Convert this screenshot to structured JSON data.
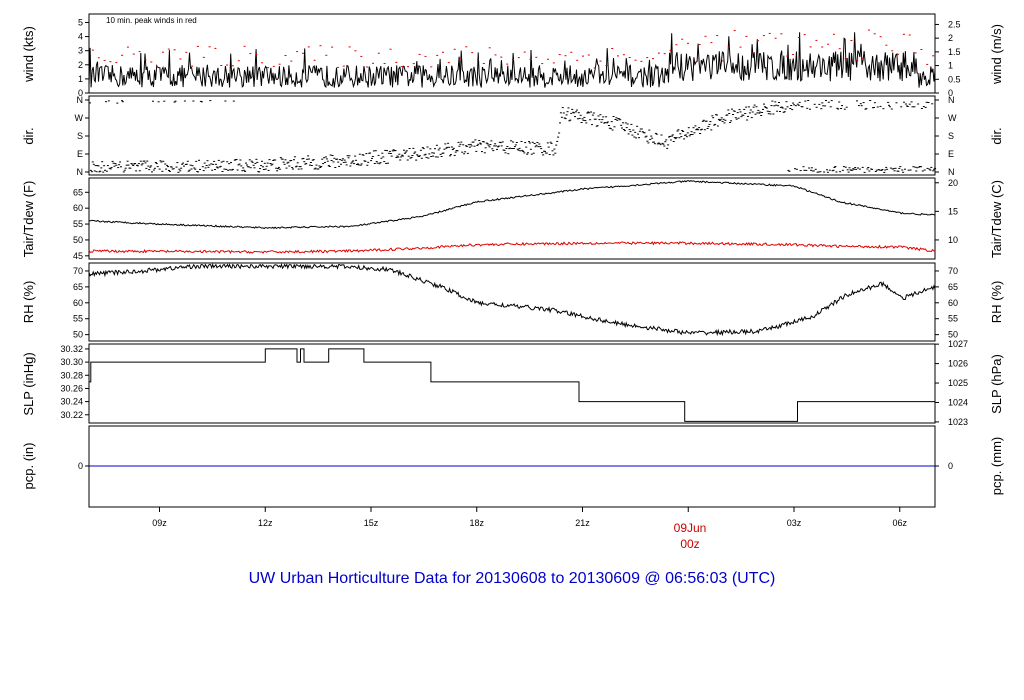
{
  "colors": {
    "wind": "#000000",
    "peak": "#e00000",
    "tair": "#000000",
    "tdew": "#e00000",
    "rh": "#000000",
    "slp": "#000000",
    "pcp": "#0000cc",
    "title": "#0000cc",
    "day_label": "#cc0000"
  },
  "title": "UW Urban Horticulture Data for 20130608  to  20130609 @ 06:56:03  (UTC)",
  "x_ticks": [
    "09z",
    "12z",
    "15z",
    "18z",
    "21z",
    "",
    "03z",
    "06z"
  ],
  "day_label": {
    "day": "09Jun",
    "hour": "00z"
  },
  "chart_data": [
    {
      "type": "line",
      "name": "wind",
      "ylabel_left": "wind (kts)",
      "ylabel_right": "wind (m/s)",
      "annotation": "10 min. peak winds in red",
      "ylim": [
        0,
        5.6
      ],
      "yticks_left": [
        "0",
        "1",
        "2",
        "3",
        "4",
        "5"
      ],
      "yticks_right": [
        "0",
        "0.5",
        "1",
        "1.5",
        "2",
        "2.5"
      ],
      "series": [
        {
          "values_description": "wind speed fluctuating mostly 0.5–2.5 kts, higher 1–4 kts between 00z and 06z"
        },
        {
          "values_description": "peak gusts mostly 2–4 kts, up to 5.5 kts near 00z–01z"
        }
      ]
    },
    {
      "type": "scatter",
      "name": "direction",
      "ylabel_left": "dir.",
      "ylabel_right": "dir.",
      "yticks_left": [
        "N",
        "E",
        "S",
        "W",
        "N"
      ],
      "yticks_right": [
        "N",
        "E",
        "S",
        "W",
        "N"
      ]
    },
    {
      "type": "line",
      "name": "temperature",
      "ylabel_left": "Tair/Tdew (F)",
      "ylabel_right": "Tair/Tdew (C)",
      "ylim_left": [
        44,
        69.5
      ],
      "yticks_left": [
        "45",
        "50",
        "55",
        "60",
        "65"
      ],
      "yticks_right": [
        "10",
        "15",
        "20"
      ],
      "x": [
        7,
        9,
        12,
        14.5,
        16.5,
        18,
        21,
        24,
        27,
        28.3,
        30,
        31
      ],
      "series": [
        {
          "name": "Tair",
          "values": [
            56,
            55,
            53.8,
            54.3,
            57.5,
            62,
            66,
            68.5,
            67,
            62,
            58.5,
            57.8
          ]
        },
        {
          "name": "Tdew",
          "values": [
            46.5,
            46.4,
            46.2,
            46.5,
            47.5,
            48.5,
            49,
            49,
            48.5,
            48,
            47.8,
            46.5
          ]
        }
      ]
    },
    {
      "type": "line",
      "name": "rh",
      "ylabel_left": "RH (%)",
      "ylabel_right": "RH (%)",
      "ylim": [
        48,
        72.5
      ],
      "yticks": [
        "50",
        "55",
        "60",
        "65",
        "70"
      ],
      "x": [
        7,
        8.5,
        10,
        12,
        14,
        15.5,
        17,
        18,
        20,
        22,
        24,
        26,
        27.5,
        28.5,
        29.5,
        30.1,
        31
      ],
      "values": [
        69,
        70,
        71.5,
        71.5,
        71.5,
        70.5,
        65,
        60,
        58,
        53.5,
        50.5,
        51,
        55.5,
        62.5,
        66,
        61.5,
        65
      ]
    },
    {
      "type": "line",
      "name": "slp",
      "ylabel_left": "SLP (inHg)",
      "ylabel_right": "SLP (hPa)",
      "ylim": [
        30.2075,
        30.3275
      ],
      "yticks_left": [
        "30.22",
        "30.24",
        "30.26",
        "30.28",
        "30.30",
        "30.32"
      ],
      "yticks_right": [
        "1023",
        "1024",
        "1025",
        "1026",
        "1027"
      ],
      "x": [
        7,
        7.05,
        12,
        12.9,
        13,
        13.1,
        13.8,
        14.8,
        16.7,
        20.9,
        23.9,
        27.1,
        31
      ],
      "values": [
        30.27,
        30.3,
        30.32,
        30.3,
        30.32,
        30.3,
        30.32,
        30.3,
        30.27,
        30.24,
        30.21,
        30.24,
        30.24
      ]
    },
    {
      "type": "line",
      "name": "precipitation",
      "ylabel_left": "pcp. (in)",
      "ylabel_right": "pcp. (mm)",
      "yticks_left": [
        "0"
      ],
      "yticks_right": [
        "0"
      ],
      "values": [
        0,
        0
      ]
    }
  ]
}
